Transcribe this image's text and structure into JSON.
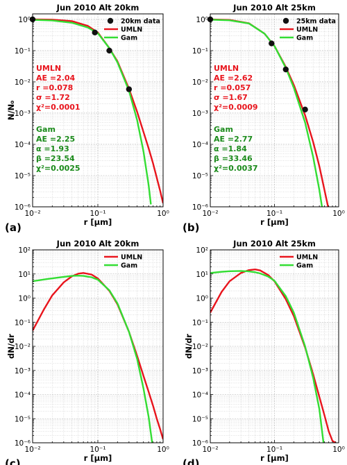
{
  "colors": {
    "umln": "#e8141c",
    "gam": "#33dd33",
    "data": "#111111",
    "grid": "#b0b0b0"
  },
  "chart_data": [
    {
      "panel_label": "(a)",
      "type": "line",
      "title": "Jun 2010 Alt 20km",
      "xlabel": "r [μm]",
      "ylabel": "N/N₀",
      "xscale": "log",
      "yscale": "log",
      "xlim": [
        0.01,
        1
      ],
      "ylim": [
        1e-06,
        1.5
      ],
      "xticks": [
        "10⁻²",
        "10⁻¹",
        "10⁰"
      ],
      "yticks": [
        "10⁰",
        "10⁻¹",
        "10⁻²",
        "10⁻³",
        "10⁻⁴",
        "10⁻⁵",
        "10⁻⁶"
      ],
      "legend_position": "top-right",
      "grid": true,
      "series": [
        {
          "name": "20km data",
          "kind": "scatter",
          "x": [
            0.01,
            0.09,
            0.15,
            0.3
          ],
          "y": [
            1.0,
            0.38,
            0.1,
            0.0058
          ]
        },
        {
          "name": "UMLN",
          "kind": "line",
          "x": [
            0.01,
            0.02,
            0.04,
            0.07,
            0.1,
            0.15,
            0.2,
            0.3,
            0.4,
            0.5,
            0.6,
            0.7,
            0.8,
            0.9,
            1.0
          ],
          "y": [
            1.0,
            0.98,
            0.88,
            0.62,
            0.38,
            0.12,
            0.045,
            0.006,
            0.0011,
            0.00025,
            7.5e-05,
            2.5e-05,
            8.5e-06,
            3.3e-06,
            1.3e-06
          ]
        },
        {
          "name": "Gam",
          "kind": "line",
          "x": [
            0.01,
            0.02,
            0.04,
            0.07,
            0.1,
            0.15,
            0.2,
            0.3,
            0.4,
            0.5,
            0.6,
            0.65
          ],
          "y": [
            0.97,
            0.92,
            0.78,
            0.55,
            0.36,
            0.12,
            0.042,
            0.0052,
            0.0006,
            6e-05,
            5e-06,
            1.2e-06
          ]
        }
      ],
      "annotations": {
        "umln_lines": [
          "UMLN",
          "AE =2.04",
          "r =0.078",
          "σ =1.72",
          "χ²=0.0001"
        ],
        "gam_lines": [
          "Gam",
          "AE =2.25",
          "α =1.93",
          "β =23.54",
          "χ²=0.0025"
        ]
      }
    },
    {
      "panel_label": "(b)",
      "type": "line",
      "title": "Jun 2010 Alt 25km",
      "xlabel": "r [μm]",
      "ylabel": "",
      "xscale": "log",
      "yscale": "log",
      "xlim": [
        0.01,
        1
      ],
      "ylim": [
        1e-06,
        1.5
      ],
      "xticks": [
        "10⁻²",
        "10⁻¹",
        "10⁰"
      ],
      "yticks": [
        "10⁰",
        "10⁻¹",
        "10⁻²",
        "10⁻³",
        "10⁻⁴",
        "10⁻⁵",
        "10⁻⁶"
      ],
      "legend_position": "top-right",
      "grid": true,
      "series": [
        {
          "name": "25km data",
          "kind": "scatter",
          "x": [
            0.01,
            0.09,
            0.15,
            0.3
          ],
          "y": [
            1.0,
            0.17,
            0.025,
            0.0013
          ]
        },
        {
          "name": "UMLN",
          "kind": "line",
          "x": [
            0.01,
            0.02,
            0.04,
            0.07,
            0.1,
            0.15,
            0.2,
            0.3,
            0.4,
            0.5,
            0.6,
            0.7
          ],
          "y": [
            1.0,
            0.96,
            0.75,
            0.35,
            0.14,
            0.03,
            0.008,
            0.00085,
            0.00012,
            2e-05,
            3.5e-06,
            8e-07
          ]
        },
        {
          "name": "Gam",
          "kind": "line",
          "x": [
            0.01,
            0.02,
            0.04,
            0.07,
            0.1,
            0.15,
            0.2,
            0.3,
            0.4,
            0.5,
            0.55
          ],
          "y": [
            0.98,
            0.93,
            0.74,
            0.35,
            0.14,
            0.028,
            0.0065,
            0.0005,
            4e-05,
            3.5e-06,
            1e-06
          ]
        }
      ],
      "annotations": {
        "umln_lines": [
          "UMLN",
          "AE =2.62",
          "r =0.057",
          "σ =1.67",
          "χ²=0.0009"
        ],
        "gam_lines": [
          "Gam",
          "AE =2.77",
          "α =1.84",
          "β =33.46",
          "χ²=0.0037"
        ]
      }
    },
    {
      "panel_label": "(c)",
      "type": "line",
      "title": "Jun 2010 Alt 20km",
      "xlabel": "r [μm]",
      "ylabel": "dN/dr",
      "xscale": "log",
      "yscale": "log",
      "xlim": [
        0.01,
        1
      ],
      "ylim": [
        1e-06,
        100
      ],
      "xticks": [
        "10⁻²",
        "10⁻¹",
        "10⁰"
      ],
      "yticks": [
        "10²",
        "10¹",
        "10⁰",
        "10⁻¹",
        "10⁻²",
        "10⁻³",
        "10⁻⁴",
        "10⁻⁵",
        "10⁻⁶"
      ],
      "legend_position": "top-right",
      "grid": true,
      "series": [
        {
          "name": "UMLN",
          "kind": "line",
          "x": [
            0.01,
            0.015,
            0.02,
            0.03,
            0.04,
            0.05,
            0.06,
            0.08,
            0.1,
            0.15,
            0.2,
            0.3,
            0.4,
            0.5,
            0.6,
            0.7,
            0.8,
            0.9,
            1.0
          ],
          "y": [
            0.045,
            0.35,
            1.3,
            4.5,
            8.0,
            10.3,
            11.0,
            9.5,
            6.5,
            2.0,
            0.55,
            0.04,
            0.004,
            0.0006,
            0.00013,
            3.5e-05,
            1e-05,
            3.7e-06,
            1.4e-06
          ]
        },
        {
          "name": "Gam",
          "kind": "line",
          "x": [
            0.01,
            0.015,
            0.02,
            0.03,
            0.04,
            0.05,
            0.06,
            0.08,
            0.1,
            0.15,
            0.2,
            0.3,
            0.4,
            0.5,
            0.6,
            0.68
          ],
          "y": [
            5.0,
            5.9,
            6.6,
            7.6,
            8.3,
            8.5,
            8.3,
            7.3,
            5.8,
            2.1,
            0.6,
            0.04,
            0.003,
            0.00018,
            1.2e-05,
            1e-06
          ]
        }
      ]
    },
    {
      "panel_label": "(d)",
      "type": "line",
      "title": "Jun 2010 Alt 25km",
      "xlabel": "r [μm]",
      "ylabel": "dN/dr",
      "xscale": "log",
      "yscale": "log",
      "xlim": [
        0.01,
        1
      ],
      "ylim": [
        1e-06,
        100
      ],
      "xticks": [
        "10⁻²",
        "10⁻¹",
        "10⁰"
      ],
      "yticks": [
        "10²",
        "10¹",
        "10⁰",
        "10⁻¹",
        "10⁻²",
        "10⁻³",
        "10⁻⁴",
        "10⁻⁵",
        "10⁻⁶"
      ],
      "legend_position": "top-right",
      "grid": true,
      "series": [
        {
          "name": "UMLN",
          "kind": "line",
          "x": [
            0.01,
            0.015,
            0.02,
            0.03,
            0.04,
            0.05,
            0.06,
            0.08,
            0.1,
            0.15,
            0.2,
            0.3,
            0.4,
            0.5,
            0.6,
            0.7,
            0.8,
            0.9
          ],
          "y": [
            0.25,
            1.8,
            5.0,
            11.0,
            14.5,
            15.5,
            14.0,
            9.0,
            5.0,
            0.9,
            0.18,
            0.009,
            0.0007,
            8e-05,
            1.4e-05,
            3e-06,
            1.2e-06,
            1e-06
          ]
        },
        {
          "name": "Gam",
          "kind": "line",
          "x": [
            0.01,
            0.015,
            0.02,
            0.03,
            0.04,
            0.05,
            0.06,
            0.08,
            0.1,
            0.15,
            0.2,
            0.3,
            0.4,
            0.5,
            0.58
          ],
          "y": [
            11.0,
            12.3,
            13.0,
            13.3,
            12.8,
            11.8,
            10.5,
            7.8,
            5.2,
            1.2,
            0.25,
            0.01,
            0.0005,
            2.5e-05,
            1e-06
          ]
        }
      ]
    }
  ]
}
